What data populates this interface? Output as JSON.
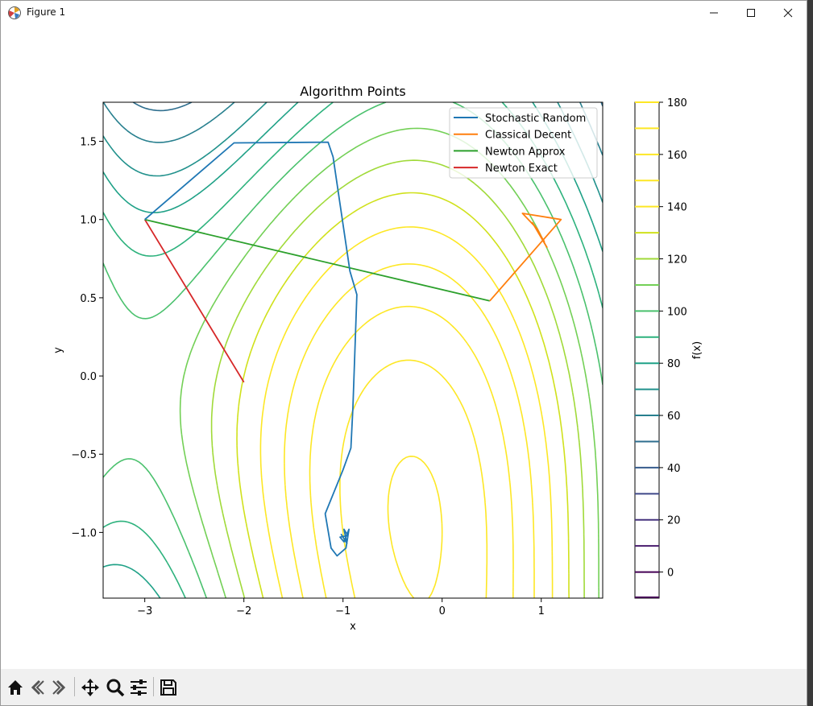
{
  "window": {
    "title": "Figure 1",
    "controls": [
      "minimize",
      "maximize",
      "close"
    ]
  },
  "toolbar": {
    "buttons": [
      "home-icon",
      "back-icon",
      "forward-icon",
      "pan-icon",
      "zoom-icon",
      "configure-subplots-icon",
      "save-icon"
    ]
  },
  "chart_data": {
    "type": "line",
    "title": "Algorithm Points",
    "xlabel": "x",
    "ylabel": "y",
    "xlim": [
      -3.42,
      1.62
    ],
    "ylim": [
      -1.42,
      1.75
    ],
    "xticks": [
      -3,
      -2,
      -1,
      0,
      1
    ],
    "xtick_labels": [
      "−3",
      "−2",
      "−1",
      "0",
      "1"
    ],
    "yticks": [
      -1.0,
      -0.5,
      0.0,
      0.5,
      1.0,
      1.5
    ],
    "ytick_labels": [
      "−1.0",
      "−0.5",
      "0.0",
      "0.5",
      "1.0",
      "1.5"
    ],
    "grid": false,
    "legend_position": "top-right",
    "series": [
      {
        "name": "Stochastic Random",
        "color": "#1f77b4",
        "points": [
          [
            -3.0,
            1.0
          ],
          [
            -2.1,
            1.49
          ],
          [
            -1.15,
            1.495
          ],
          [
            -1.1,
            1.4
          ],
          [
            -0.93,
            0.67
          ],
          [
            -0.86,
            0.52
          ],
          [
            -0.9,
            -0.2
          ],
          [
            -0.92,
            -0.46
          ],
          [
            -1.0,
            -0.6
          ],
          [
            -1.18,
            -0.88
          ],
          [
            -1.12,
            -1.1
          ],
          [
            -1.06,
            -1.15
          ],
          [
            -0.97,
            -1.1
          ],
          [
            -0.94,
            -0.98
          ],
          [
            -0.99,
            -1.06
          ],
          [
            -1.03,
            -1.03
          ],
          [
            -0.95,
            -1.02
          ],
          [
            -0.99,
            -0.98
          ],
          [
            -0.96,
            -1.07
          ],
          [
            -1.02,
            -1.01
          ]
        ]
      },
      {
        "name": "Classical Decent",
        "color": "#ff7f0e",
        "points": [
          [
            0.48,
            0.48
          ],
          [
            1.2,
            1.0
          ],
          [
            0.81,
            1.04
          ],
          [
            0.96,
            0.94
          ],
          [
            1.04,
            0.84
          ],
          [
            0.91,
            0.98
          ],
          [
            1.03,
            0.86
          ],
          [
            0.93,
            0.96
          ],
          [
            1.06,
            0.82
          ]
        ]
      },
      {
        "name": "Newton Approx",
        "color": "#2ca02c",
        "points": [
          [
            -3.0,
            1.0
          ],
          [
            0.48,
            0.48
          ]
        ]
      },
      {
        "name": "Newton Exact",
        "color": "#d62728",
        "points": [
          [
            -3.0,
            1.0
          ],
          [
            -2.0,
            -0.04
          ]
        ]
      }
    ],
    "contours": {
      "levels": [
        0,
        10,
        20,
        30,
        40,
        50,
        60,
        70,
        80,
        90,
        100,
        110,
        120,
        130,
        140,
        150,
        160,
        170,
        180
      ],
      "colors": [
        "#440154",
        "#481b6d",
        "#46337e",
        "#3f4889",
        "#365c8d",
        "#2e6e8e",
        "#277f8e",
        "#21918c",
        "#1fa187",
        "#2db27d",
        "#4ac16d",
        "#73d056",
        "#a0da39",
        "#d0e11c",
        "#fde725"
      ]
    },
    "colorbar": {
      "label": "f(x)",
      "ticks": [
        0,
        20,
        40,
        60,
        80,
        100,
        120,
        140,
        160,
        180
      ],
      "range": [
        -10,
        180
      ]
    }
  }
}
